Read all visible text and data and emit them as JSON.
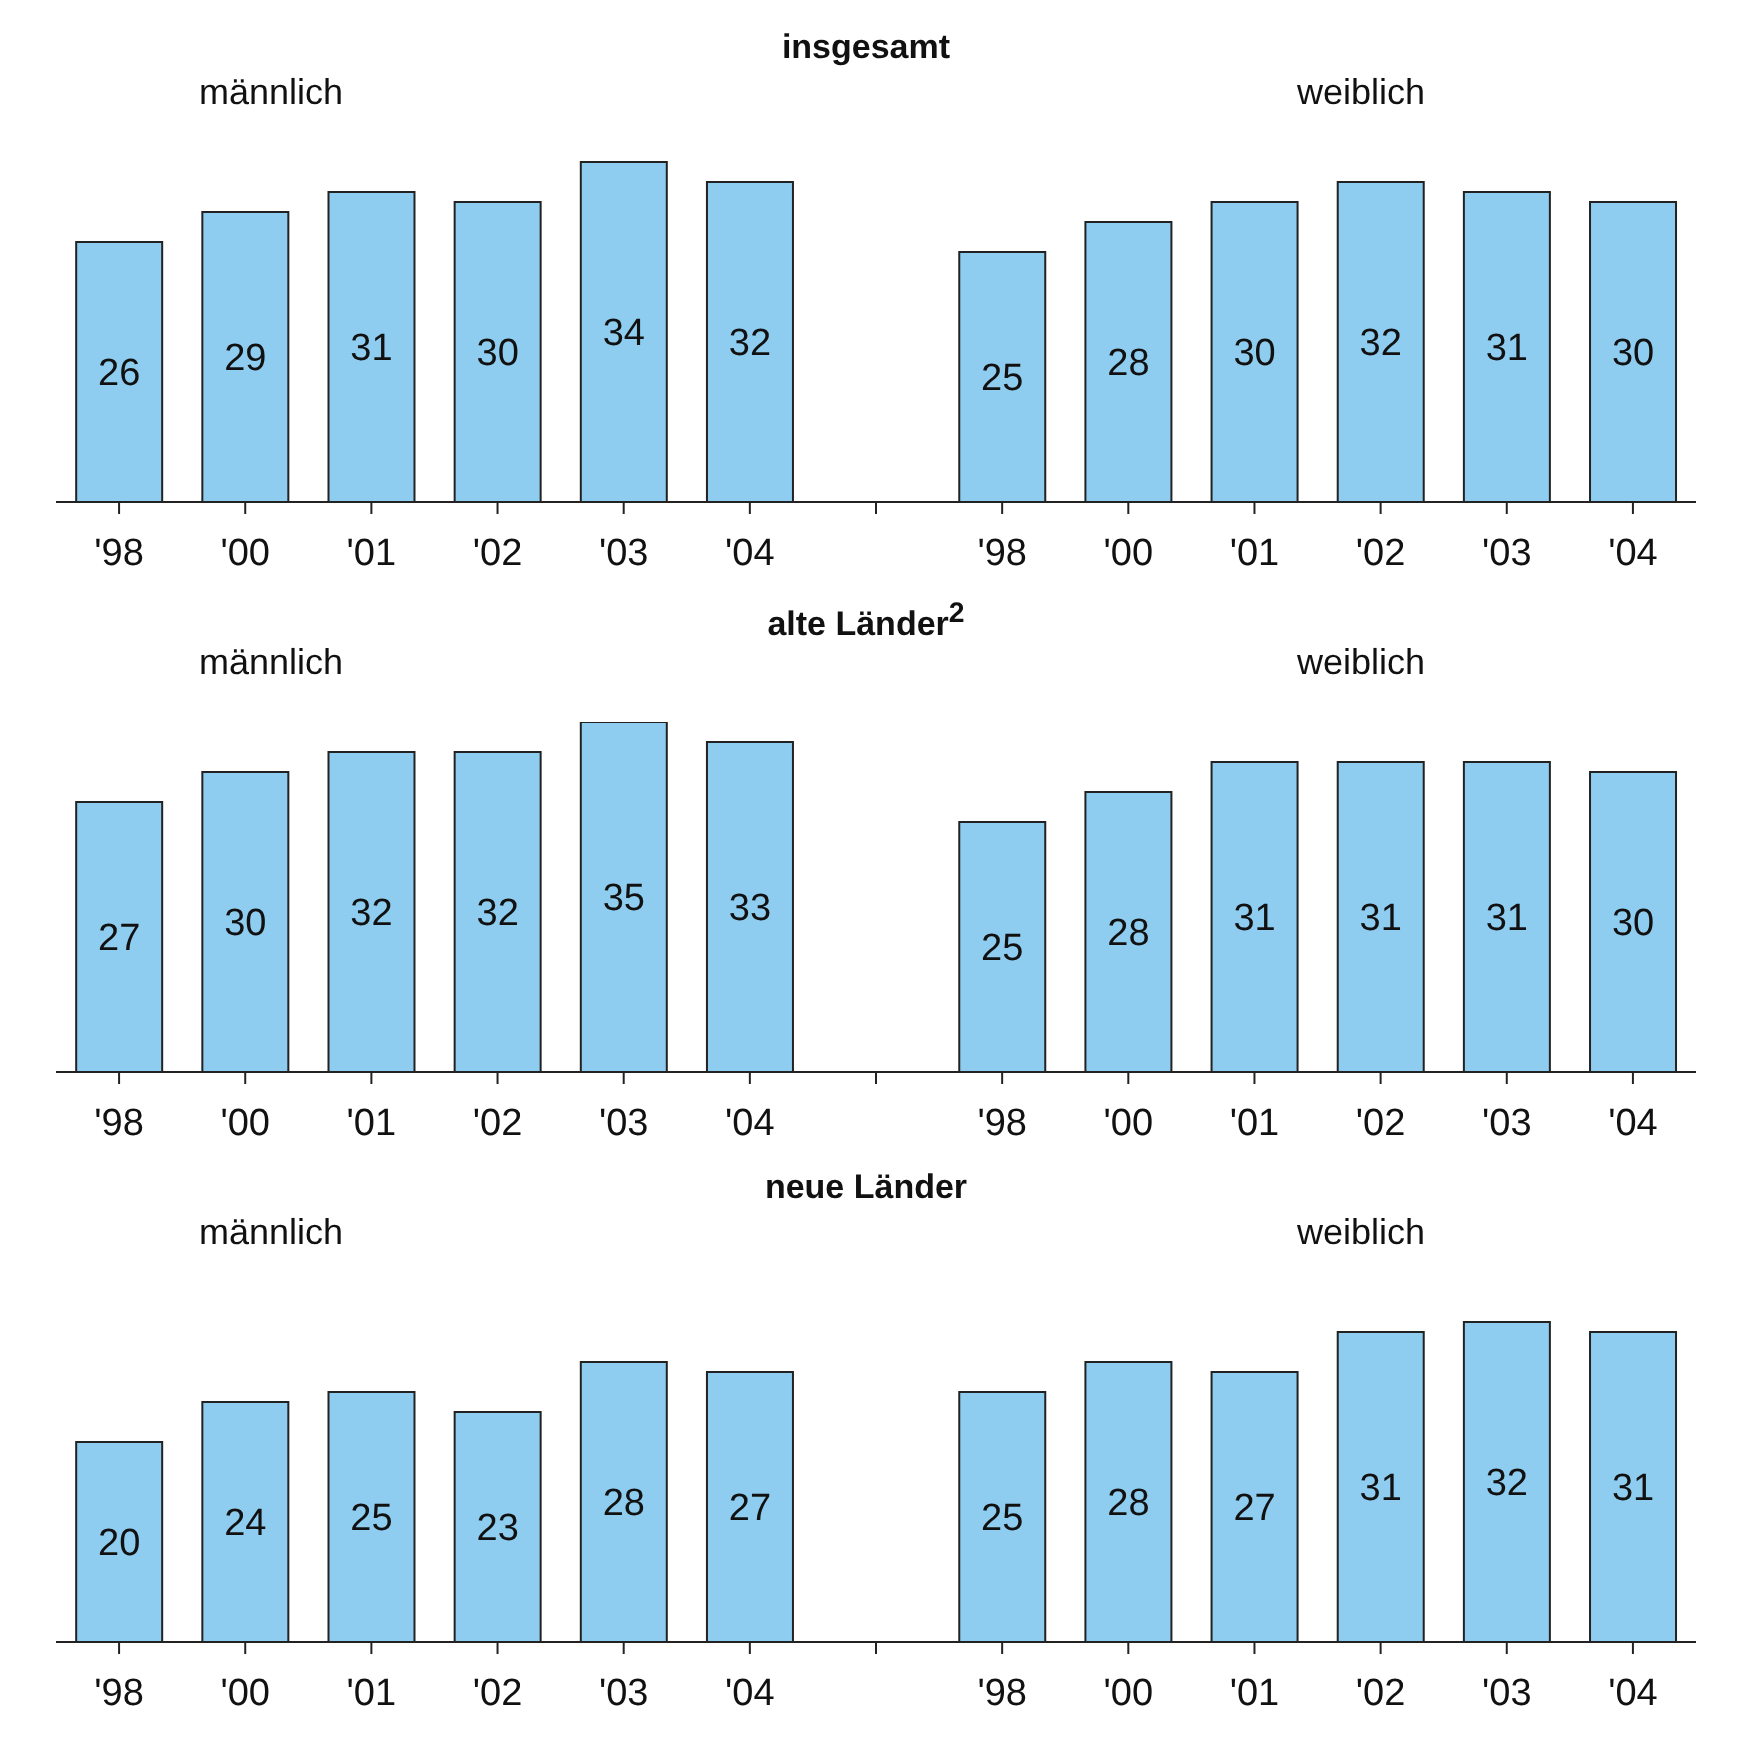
{
  "chart_data": [
    {
      "type": "bar",
      "title": "insgesamt",
      "annotations": [
        "männlich",
        "weiblich"
      ],
      "categories": [
        "'98",
        "'00",
        "'01",
        "'02",
        "'03",
        "'04",
        null,
        "'98",
        "'00",
        "'01",
        "'02",
        "'03",
        "'04"
      ],
      "values": [
        26,
        29,
        31,
        30,
        34,
        32,
        null,
        25,
        28,
        30,
        32,
        31,
        30
      ],
      "color": "#8fcdf0",
      "data_labels": true,
      "grid": false,
      "legend": false
    },
    {
      "type": "bar",
      "title": "alte Länder$^{2}$",
      "annotations": [
        "männlich",
        "weiblich"
      ],
      "categories": [
        "'98",
        "'00",
        "'01",
        "'02",
        "'03",
        "'04",
        null,
        "'98",
        "'00",
        "'01",
        "'02",
        "'03",
        "'04"
      ],
      "values": [
        27,
        30,
        32,
        32,
        35,
        33,
        null,
        25,
        28,
        31,
        31,
        31,
        30
      ],
      "color": "#8fcdf0",
      "data_labels": true,
      "grid": false,
      "legend": false
    },
    {
      "type": "bar",
      "title": "neue Länder",
      "annotations": [
        "männlich",
        "weiblich"
      ],
      "categories": [
        "'98",
        "'00",
        "'01",
        "'02",
        "'03",
        "'04",
        null,
        "'98",
        "'00",
        "'01",
        "'02",
        "'03",
        "'04"
      ],
      "values": [
        20,
        24,
        25,
        23,
        28,
        27,
        null,
        25,
        28,
        27,
        31,
        32,
        31
      ],
      "color": "#8fcdf0",
      "data_labels": true,
      "grid": false,
      "legend": false
    }
  ]
}
